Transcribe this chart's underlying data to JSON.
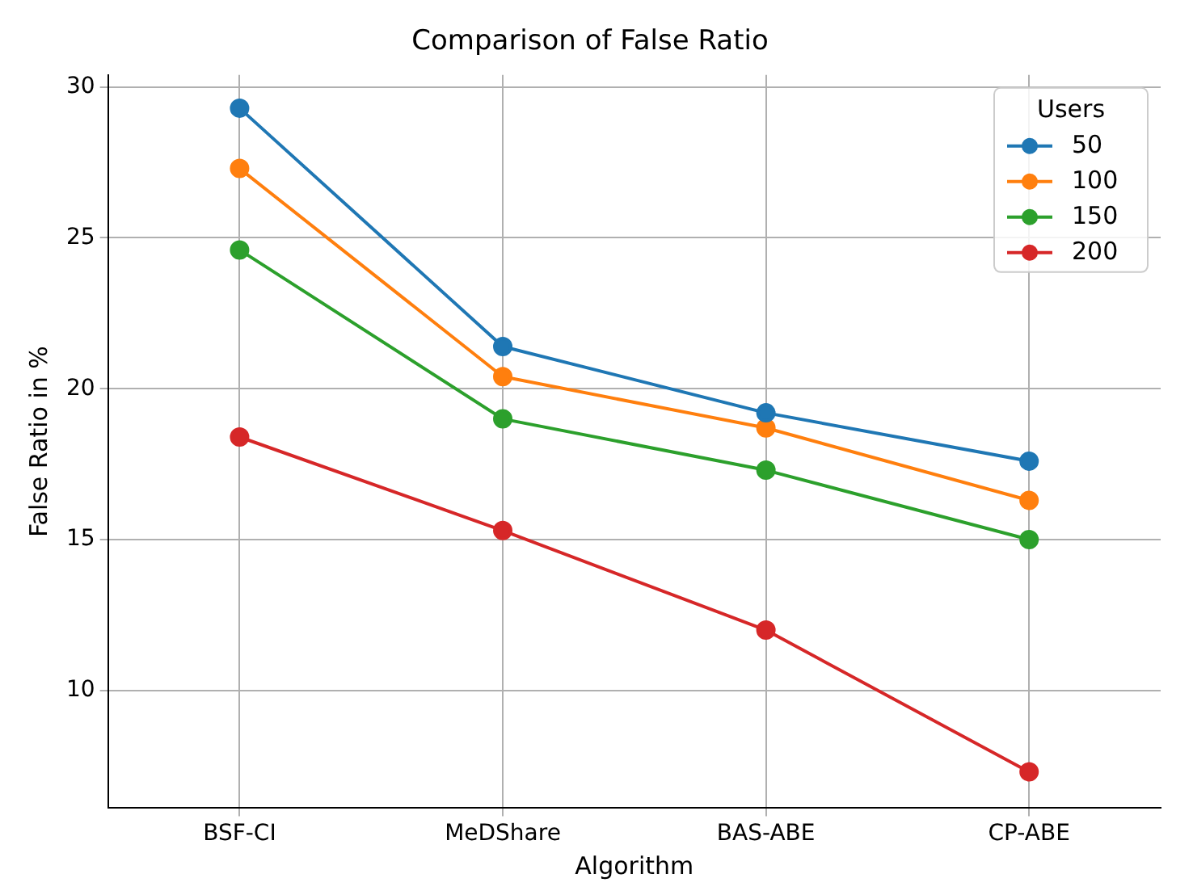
{
  "chart_data": {
    "type": "line",
    "title": "Comparison of False Ratio",
    "xlabel": "Algorithm",
    "ylabel": "False Ratio in %",
    "legend_title": "Users",
    "categories": [
      "BSF-CI",
      "MeDShare",
      "BAS-ABE",
      "CP-ABE"
    ],
    "series": [
      {
        "name": "50",
        "color": "#1f77b4",
        "values": [
          29.3,
          21.4,
          19.2,
          17.6
        ]
      },
      {
        "name": "100",
        "color": "#ff7f0e",
        "values": [
          27.3,
          20.4,
          18.7,
          16.3
        ]
      },
      {
        "name": "150",
        "color": "#2ca02c",
        "values": [
          24.6,
          19.0,
          17.3,
          15.0
        ]
      },
      {
        "name": "200",
        "color": "#d62728",
        "values": [
          18.4,
          15.3,
          12.0,
          7.3
        ]
      }
    ],
    "ylim": [
      6.1,
      30.4
    ],
    "yticks": [
      10,
      15,
      20,
      25,
      30
    ],
    "grid": true,
    "legend": "top right",
    "marker": "circle",
    "line_style": "solid"
  }
}
